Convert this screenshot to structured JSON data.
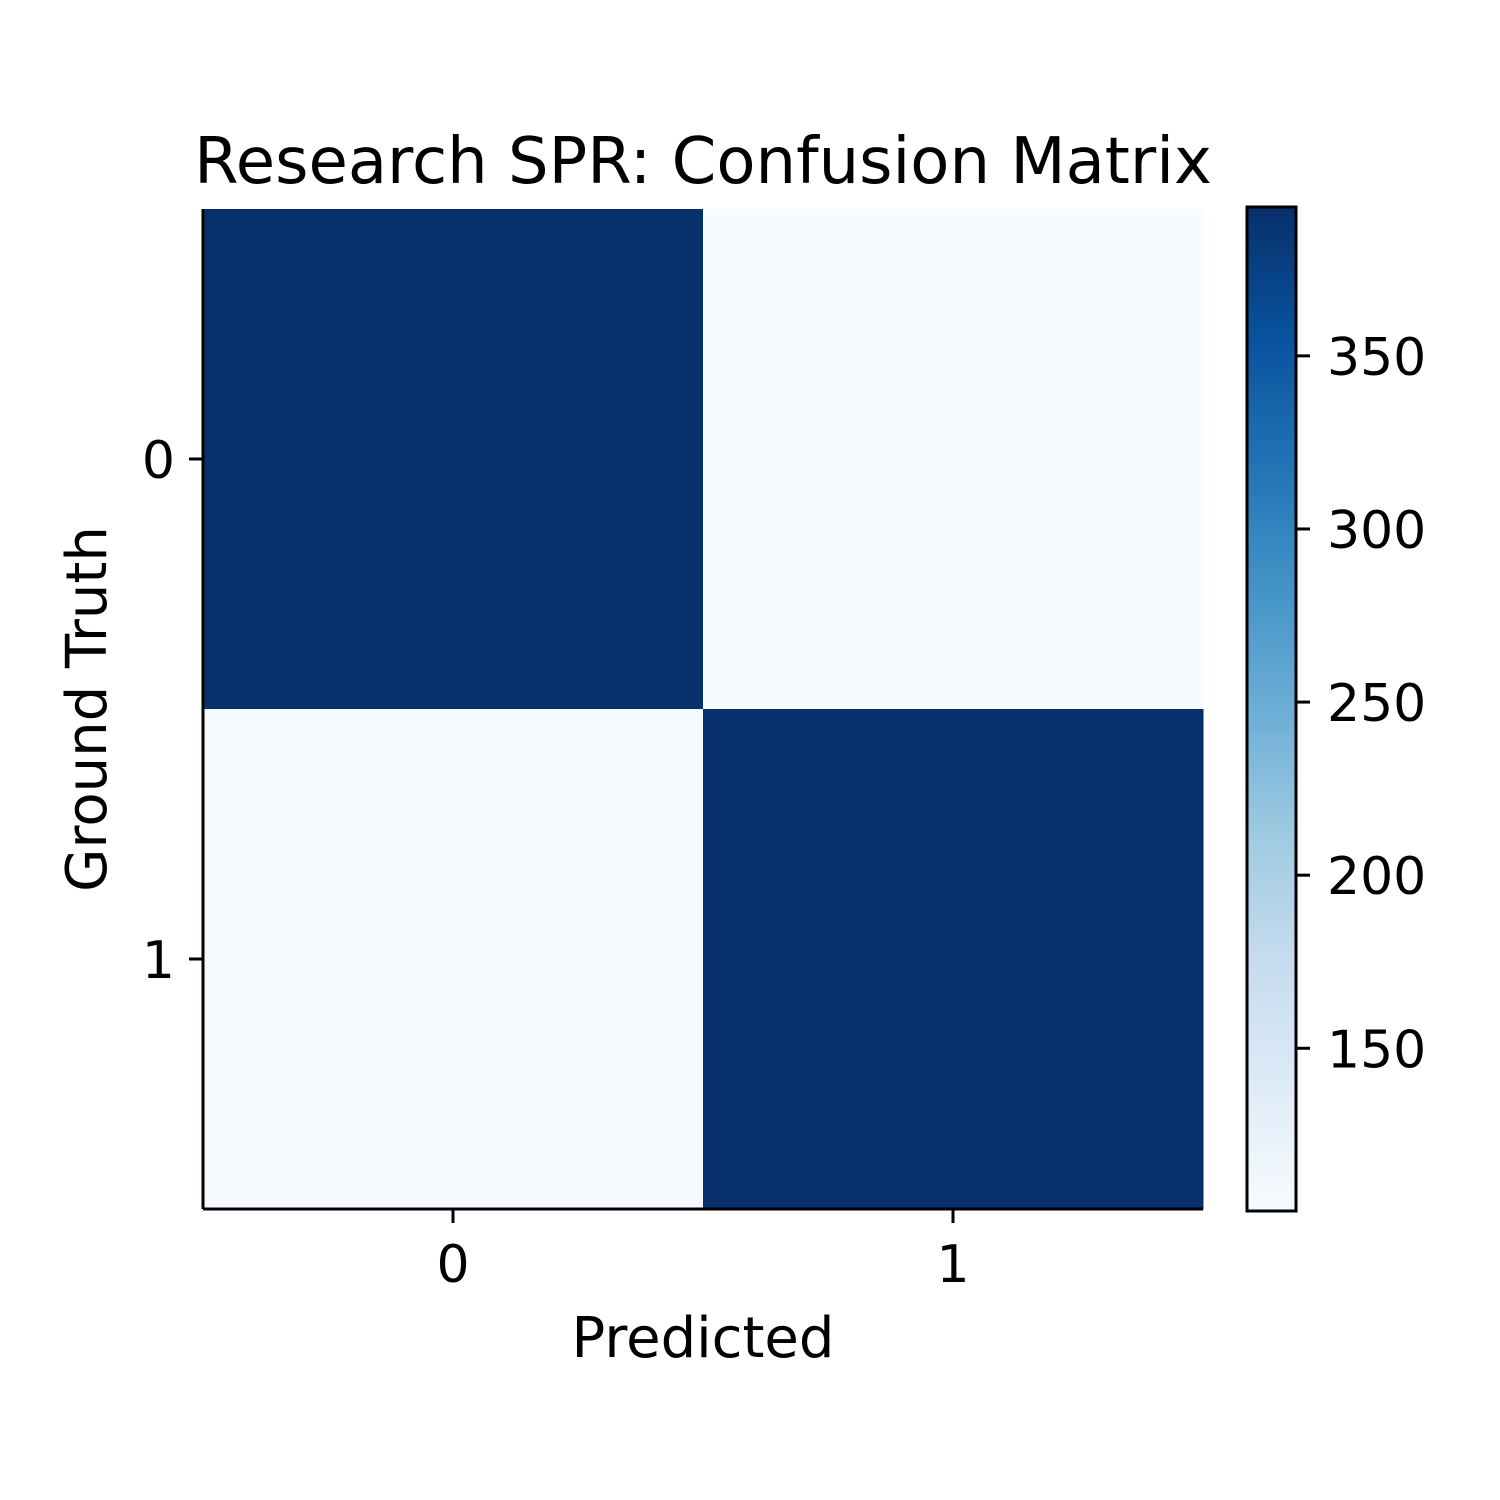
{
  "chart_data": {
    "type": "heatmap",
    "title": "Research SPR: Confusion Matrix",
    "xlabel": "Predicted",
    "ylabel": "Ground Truth",
    "x_categories": [
      "0",
      "1"
    ],
    "y_categories": [
      "0",
      "1"
    ],
    "matrix": [
      [
        393,
        103
      ],
      [
        105,
        393
      ]
    ],
    "colormap": "Blues",
    "colorbar": {
      "range": [
        103,
        393
      ],
      "ticks": [
        150,
        200,
        250,
        300,
        350
      ],
      "tick_labels": [
        "150",
        "200",
        "250",
        "300",
        "350"
      ],
      "colors": [
        "#f7fbff",
        "#deebf7",
        "#c6dbef",
        "#9ecae1",
        "#6baed6",
        "#4292c6",
        "#2171b5",
        "#08519c",
        "#08306b"
      ]
    },
    "grid": false,
    "legend": "none"
  }
}
